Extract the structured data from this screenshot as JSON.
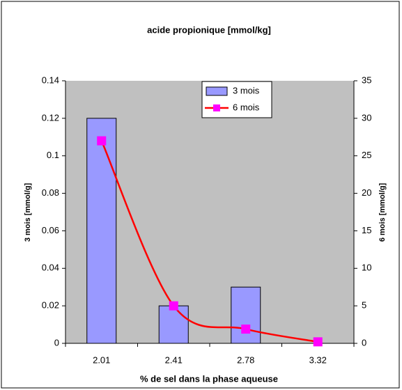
{
  "chart_data": {
    "type": "bar-line",
    "title": "acide propionique [mmol/kg]",
    "x_label": "% de sel dans la phase aqueuse",
    "y_label": "3 mois [mmol/g]",
    "y2_label": "6 mois [mmol/g]",
    "categories": [
      "2.01",
      "2.41",
      "2.78",
      "3.32"
    ],
    "series": [
      {
        "name": "3 mois",
        "type": "bar",
        "color": "#9999ff",
        "values": [
          0.12,
          0.02,
          0.03,
          0
        ]
      },
      {
        "name": "6 mois",
        "type": "line",
        "axis": "y2",
        "color": "#ff0000",
        "marker_color": "#ff00ff",
        "values": [
          27,
          5,
          1.9,
          0.2
        ]
      }
    ],
    "ylim": [
      0,
      0.14
    ],
    "yticks": [
      0,
      0.02,
      0.04,
      0.06,
      0.08,
      0.1,
      0.12,
      0.14
    ],
    "y2lim": [
      0,
      35
    ],
    "y2ticks": [
      0,
      5,
      10,
      15,
      20,
      25,
      30,
      35
    ],
    "grid": false,
    "legend_position": "top",
    "plot_background": "#c0c0c0"
  }
}
